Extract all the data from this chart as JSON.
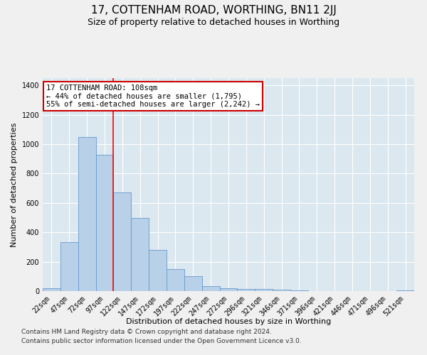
{
  "title": "17, COTTENHAM ROAD, WORTHING, BN11 2JJ",
  "subtitle": "Size of property relative to detached houses in Worthing",
  "xlabel": "Distribution of detached houses by size in Worthing",
  "ylabel": "Number of detached properties",
  "categories": [
    "22sqm",
    "47sqm",
    "72sqm",
    "97sqm",
    "122sqm",
    "147sqm",
    "172sqm",
    "197sqm",
    "222sqm",
    "247sqm",
    "272sqm",
    "296sqm",
    "321sqm",
    "346sqm",
    "371sqm",
    "396sqm",
    "421sqm",
    "446sqm",
    "471sqm",
    "496sqm",
    "521sqm"
  ],
  "bar_values": [
    20,
    335,
    1050,
    930,
    670,
    500,
    280,
    150,
    100,
    35,
    20,
    15,
    15,
    10,
    5,
    0,
    0,
    0,
    0,
    0,
    5
  ],
  "bar_color": "#b8d0e8",
  "bar_edge_color": "#6699cc",
  "bg_color": "#dce8f0",
  "grid_color": "#ffffff",
  "annotation_line1": "17 COTTENHAM ROAD: 108sqm",
  "annotation_line2": "← 44% of detached houses are smaller (1,795)",
  "annotation_line3": "55% of semi-detached houses are larger (2,242) →",
  "annotation_box_color": "#ffffff",
  "annotation_box_edge_color": "#cc0000",
  "ylim": [
    0,
    1450
  ],
  "yticks": [
    0,
    200,
    400,
    600,
    800,
    1000,
    1200,
    1400
  ],
  "red_line_index": 3.5,
  "footer_line1": "Contains HM Land Registry data © Crown copyright and database right 2024.",
  "footer_line2": "Contains public sector information licensed under the Open Government Licence v3.0.",
  "title_fontsize": 11,
  "subtitle_fontsize": 9,
  "axis_label_fontsize": 8,
  "tick_fontsize": 7,
  "annotation_fontsize": 7.5,
  "footer_fontsize": 6.5
}
